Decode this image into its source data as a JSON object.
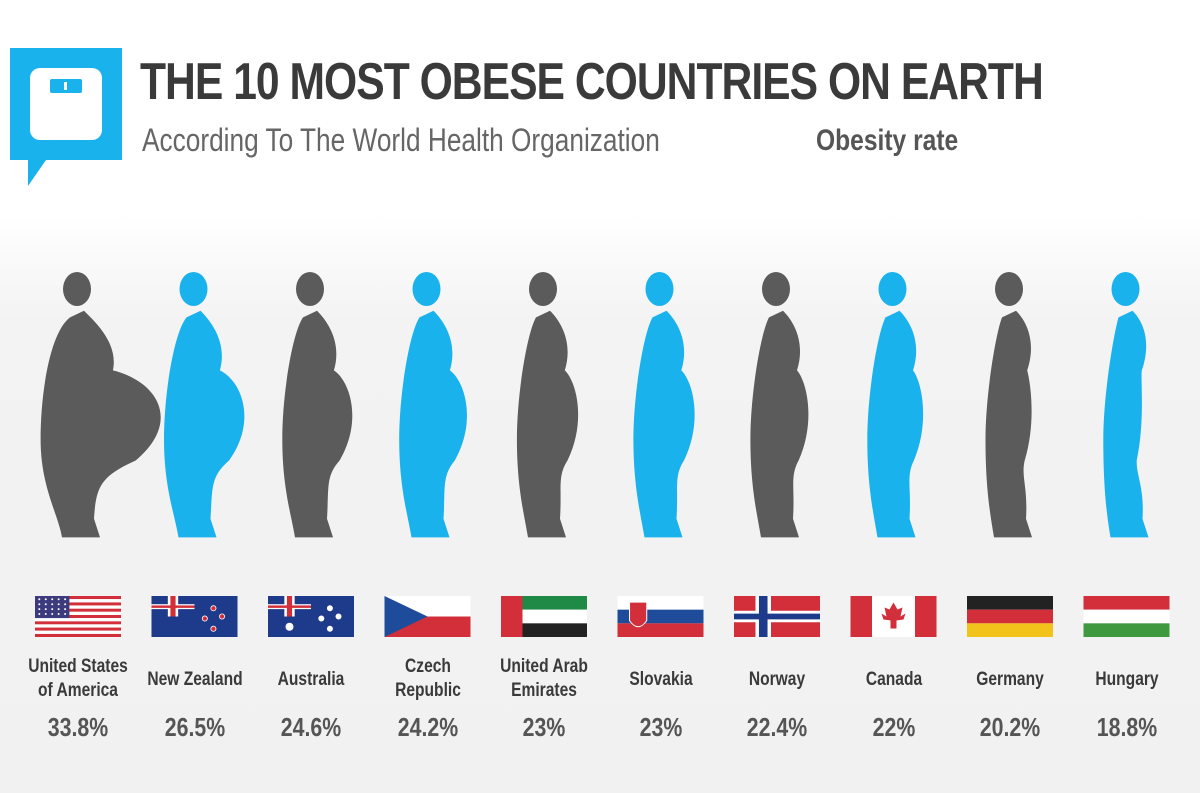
{
  "header": {
    "title": "THE 10 MOST OBESE COUNTRIES ON EARTH",
    "subtitle": "According To The World Health Organization",
    "rate_label": "Obesity rate",
    "logo_icon": "scale-icon"
  },
  "colors": {
    "blue": "#1ab2ec",
    "gray": "#5b5b5b"
  },
  "chart_data": {
    "type": "bar",
    "title": "THE 10 MOST OBESE COUNTRIES ON EARTH",
    "subtitle": "According To The World Health Organization",
    "ylabel": "Obesity rate",
    "categories": [
      "United States\nof America",
      "New Zealand",
      "Australia",
      "Czech\nRepublic",
      "United Arab\nEmirates",
      "Slovakia",
      "Norway",
      "Canada",
      "Germany",
      "Hungary"
    ],
    "values": [
      33.8,
      26.5,
      24.6,
      24.2,
      23,
      23,
      22.4,
      22,
      20.2,
      18.8
    ],
    "value_labels": [
      "33.8%",
      "26.5%",
      "24.6%",
      "24.2%",
      "23%",
      "23%",
      "22.4%",
      "22%",
      "20.2%",
      "18.8%"
    ],
    "flags": [
      "usa-flag-icon",
      "new-zealand-flag-icon",
      "australia-flag-icon",
      "czech-flag-icon",
      "uae-flag-icon",
      "slovakia-flag-icon",
      "norway-flag-icon",
      "canada-flag-icon",
      "germany-flag-icon",
      "hungary-flag-icon"
    ],
    "mark_colors": [
      "gray",
      "blue",
      "gray",
      "blue",
      "gray",
      "blue",
      "gray",
      "blue",
      "gray",
      "blue"
    ]
  }
}
